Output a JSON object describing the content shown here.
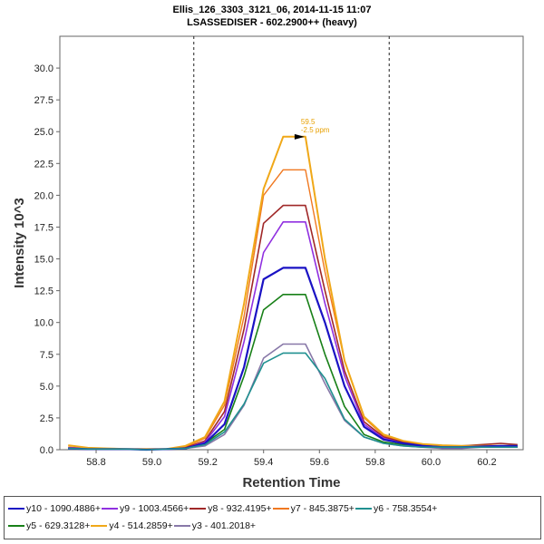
{
  "chart_data": {
    "type": "line",
    "title": "Ellis_126_3303_3121_06, 2014-11-15 11:07",
    "subtitle": "LSASSEDISER - 602.2900++ (heavy)",
    "xlabel": "Retention Time",
    "ylabel": "Intensity 10^3",
    "xlim": [
      58.67,
      60.33
    ],
    "ylim": [
      0,
      32.5
    ],
    "x_ticks": [
      58.8,
      59.0,
      59.2,
      59.4,
      59.6,
      59.8,
      60.0,
      60.2
    ],
    "x_tick_labels": [
      "58.8",
      "59.0",
      "59.2",
      "59.4",
      "59.6",
      "59.8",
      "60.0",
      "60.2"
    ],
    "y_ticks": [
      0,
      2.5,
      5,
      7.5,
      10,
      12.5,
      15,
      17.5,
      20,
      22.5,
      25,
      27.5,
      30
    ],
    "y_tick_labels": [
      "0.0",
      "2.5",
      "5.0",
      "7.5",
      "10.0",
      "12.5",
      "15.0",
      "17.5",
      "20.0",
      "22.5",
      "25.0",
      "27.5",
      "30.0"
    ],
    "grid": false,
    "legend_position": "bottom",
    "boundaries": [
      59.15,
      59.85
    ],
    "annotation": {
      "x": 59.55,
      "y": 24.6,
      "line1": "59.5",
      "line2": "-2.5 ppm",
      "color": "#e8a000"
    },
    "x": [
      58.7,
      58.77,
      58.84,
      58.91,
      58.98,
      59.05,
      59.12,
      59.19,
      59.26,
      59.33,
      59.4,
      59.47,
      59.55,
      59.62,
      59.69,
      59.76,
      59.83,
      59.9,
      59.97,
      60.04,
      60.11,
      60.18,
      60.25,
      60.31
    ],
    "series": [
      {
        "name": "y10 - 1090.4886+",
        "color": "#1a12c4",
        "width": 2.2,
        "values": [
          0.1,
          0.05,
          0.05,
          0.05,
          0.0,
          0.05,
          0.1,
          0.5,
          2.0,
          6.5,
          13.4,
          14.3,
          14.3,
          10.0,
          5.0,
          1.8,
          0.8,
          0.5,
          0.3,
          0.2,
          0.2,
          0.25,
          0.3,
          0.3
        ]
      },
      {
        "name": "y9 - 1003.4566+",
        "color": "#9030e0",
        "width": 1.6,
        "values": [
          0.15,
          0.1,
          0.05,
          0.05,
          0.0,
          0.05,
          0.1,
          0.6,
          2.6,
          8.5,
          15.5,
          17.9,
          17.9,
          11.5,
          5.8,
          2.0,
          0.9,
          0.5,
          0.3,
          0.2,
          0.2,
          0.3,
          0.3,
          0.3
        ]
      },
      {
        "name": "y8 - 932.4195+",
        "color": "#a02828",
        "width": 1.6,
        "values": [
          0.1,
          0.05,
          0.05,
          0.05,
          0.0,
          0.05,
          0.15,
          0.7,
          3.0,
          9.5,
          17.8,
          19.2,
          19.2,
          12.5,
          6.2,
          2.2,
          1.0,
          0.6,
          0.4,
          0.3,
          0.3,
          0.4,
          0.5,
          0.4
        ]
      },
      {
        "name": "y7 - 845.3875+",
        "color": "#f07820",
        "width": 1.4,
        "values": [
          0.2,
          0.1,
          0.05,
          0.05,
          0.0,
          0.05,
          0.2,
          0.9,
          3.5,
          10.5,
          20.0,
          22.0,
          22.0,
          14.0,
          7.0,
          2.5,
          1.1,
          0.6,
          0.4,
          0.3,
          0.3,
          0.3,
          0.3,
          0.3
        ]
      },
      {
        "name": "y6 - 758.3554+",
        "color": "#209090",
        "width": 1.6,
        "values": [
          0.1,
          0.05,
          0.05,
          0.05,
          0.0,
          0.05,
          0.1,
          0.4,
          1.4,
          3.6,
          6.8,
          7.6,
          7.6,
          5.6,
          2.4,
          1.0,
          0.5,
          0.3,
          0.2,
          0.2,
          0.2,
          0.2,
          0.2,
          0.2
        ]
      },
      {
        "name": "y5 - 629.3128+",
        "color": "#188018",
        "width": 1.6,
        "values": [
          0.1,
          0.05,
          0.05,
          0.05,
          0.0,
          0.05,
          0.1,
          0.5,
          1.6,
          5.8,
          11.0,
          12.2,
          12.2,
          7.5,
          3.4,
          1.2,
          0.6,
          0.4,
          0.2,
          0.2,
          0.2,
          0.25,
          0.25,
          0.2
        ]
      },
      {
        "name": "y4 - 514.2859+",
        "color": "#f0a818",
        "width": 2.0,
        "values": [
          0.35,
          0.15,
          0.1,
          0.05,
          0.05,
          0.05,
          0.3,
          1.0,
          3.8,
          11.5,
          20.5,
          24.6,
          24.6,
          15.0,
          7.0,
          2.6,
          1.2,
          0.7,
          0.45,
          0.35,
          0.3,
          0.3,
          0.3,
          0.3
        ]
      },
      {
        "name": "y3 - 401.2018+",
        "color": "#8878a8",
        "width": 1.6,
        "values": [
          0.05,
          0.05,
          0.05,
          0.05,
          0.0,
          0.05,
          0.1,
          0.3,
          1.2,
          3.5,
          7.2,
          8.3,
          8.3,
          5.2,
          2.3,
          1.0,
          0.5,
          0.3,
          0.2,
          0.1,
          0.1,
          0.2,
          0.2,
          0.2
        ]
      }
    ]
  }
}
